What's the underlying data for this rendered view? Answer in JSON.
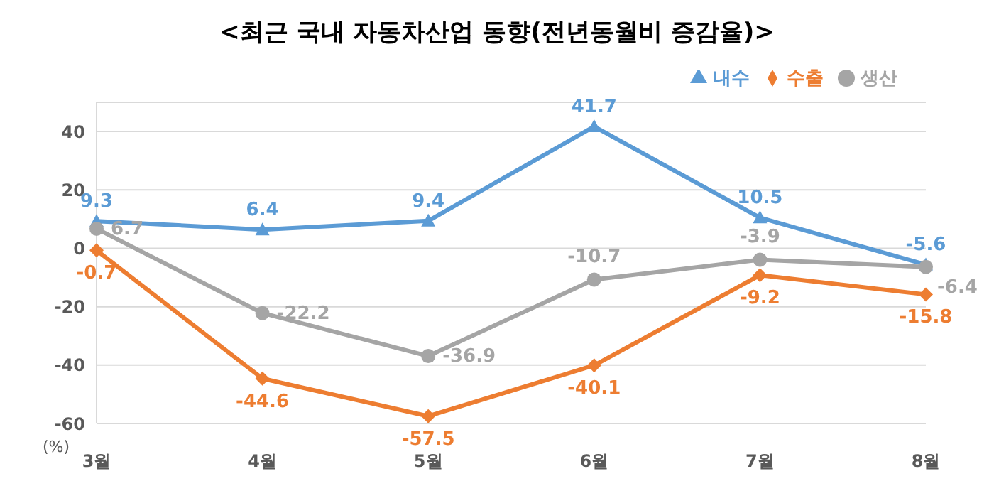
{
  "chart_data": {
    "type": "line",
    "title": "<최근 국내 자동차산업 동향(전년동월비 증감율)>",
    "ylabel": "(%)",
    "categories": [
      "3월",
      "4월",
      "5월",
      "6월",
      "7월",
      "8월"
    ],
    "series": [
      {
        "name": "내수",
        "color": "#5b9bd5",
        "marker": "triangle",
        "values": [
          9.3,
          6.4,
          9.4,
          41.7,
          10.5,
          -5.6
        ]
      },
      {
        "name": "수출",
        "color": "#ed7d31",
        "marker": "diamond",
        "values": [
          -0.7,
          -44.6,
          -57.5,
          -40.1,
          -9.2,
          -15.8
        ]
      },
      {
        "name": "생산",
        "color": "#a5a5a5",
        "marker": "circle",
        "values": [
          6.7,
          -22.2,
          -36.9,
          -10.7,
          -3.9,
          -6.4
        ]
      }
    ],
    "ylim": [
      -60,
      50
    ],
    "yticks": [
      -60,
      -40,
      -20,
      0,
      20,
      40
    ],
    "grid": "y",
    "legend": "top right",
    "data_labels": true,
    "line_style": "solid"
  }
}
